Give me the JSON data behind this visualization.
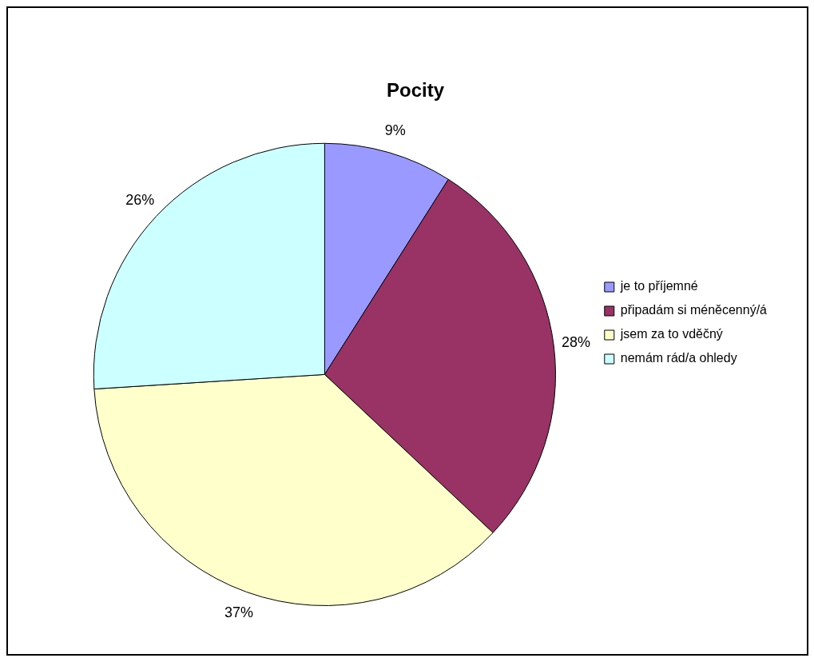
{
  "chart_data": {
    "type": "pie",
    "title": "Pocity",
    "categories": [
      "je to příjemné",
      "připadám si méněcenný/á",
      "jsem za to vděčný",
      "nemám rád/a ohledy"
    ],
    "values": [
      9,
      28,
      37,
      26
    ],
    "value_labels": [
      "9%",
      "28%",
      "37%",
      "26%"
    ],
    "colors": [
      "#9999ff",
      "#993366",
      "#ffffcc",
      "#ccffff"
    ],
    "legend": "right"
  }
}
